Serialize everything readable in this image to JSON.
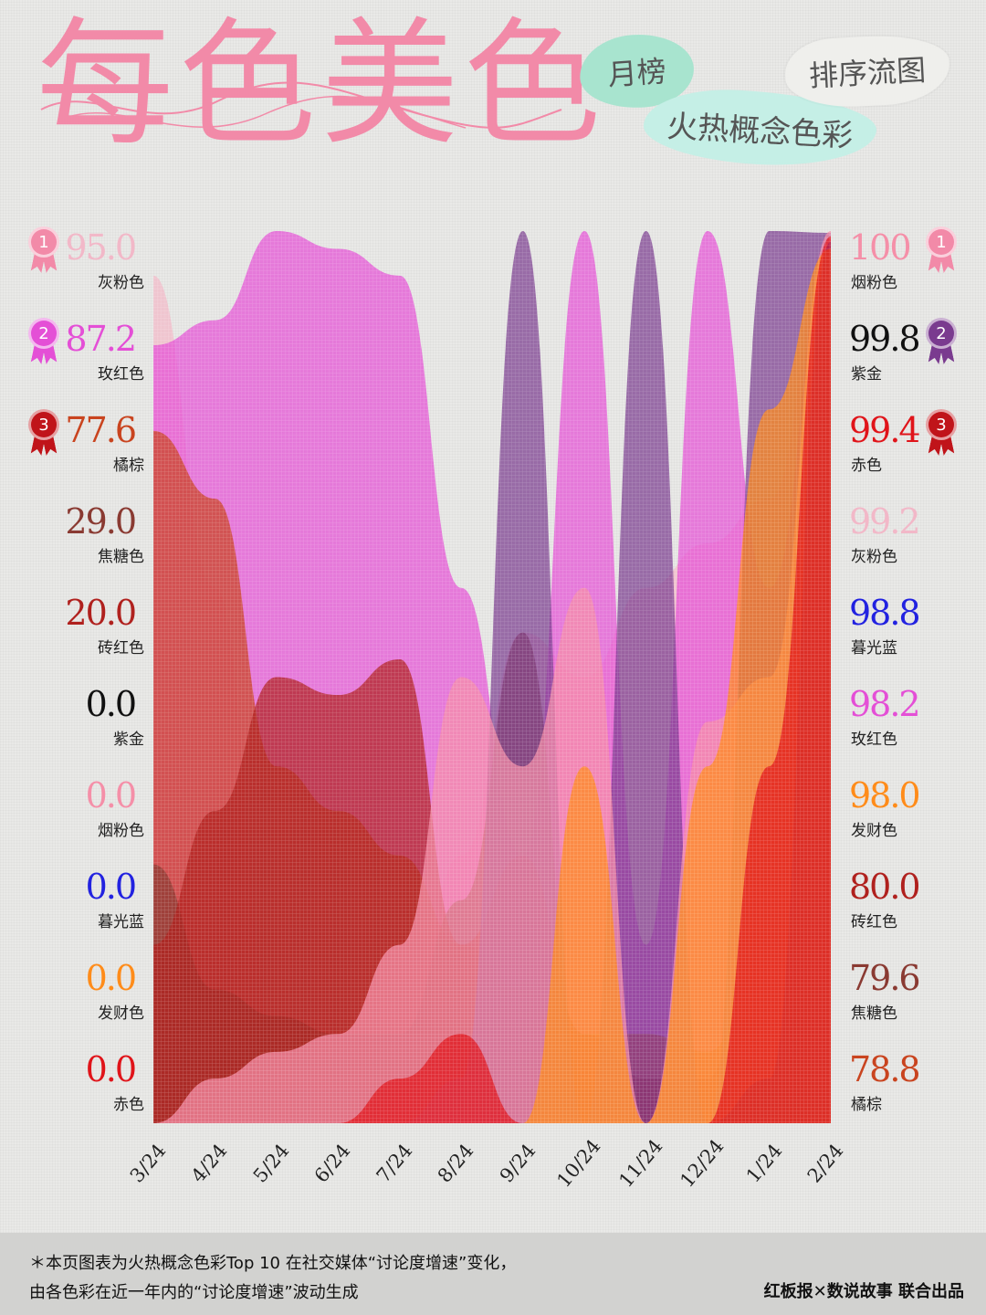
{
  "header": {
    "title": "每色美色",
    "month_tag": "月榜",
    "subtitle": "火热概念色彩",
    "chart_kind_tag": "排序流图"
  },
  "chart_data": {
    "type": "area",
    "x": [
      "3/24",
      "4/24",
      "5/24",
      "6/24",
      "7/24",
      "8/24",
      "9/24",
      "10/24",
      "11/24",
      "12/24",
      "1/24",
      "2/24"
    ],
    "series": [
      {
        "name": "灰粉色",
        "color": "#f2b8c8",
        "values": [
          95.0,
          60,
          10,
          5,
          8,
          30,
          55,
          50,
          60,
          65,
          70,
          99.2
        ]
      },
      {
        "name": "玫红色",
        "color": "#e44fd6",
        "values": [
          87.2,
          90,
          100,
          98,
          95,
          60,
          30,
          100,
          20,
          100,
          60,
          98.2
        ]
      },
      {
        "name": "橘棕",
        "color": "#c9441f",
        "values": [
          77.6,
          70,
          40,
          35,
          30,
          20,
          15,
          10,
          10,
          8,
          20,
          78.8
        ]
      },
      {
        "name": "焦糖色",
        "color": "#8a3a32",
        "values": [
          29.0,
          15,
          12,
          10,
          10,
          25,
          55,
          5,
          0,
          0,
          10,
          79.6
        ]
      },
      {
        "name": "砖红色",
        "color": "#b0211e",
        "values": [
          20.0,
          35,
          50,
          48,
          52,
          20,
          30,
          10,
          5,
          5,
          35,
          80.0
        ]
      },
      {
        "name": "紫金",
        "color": "#7a3b8f",
        "values": [
          0.0,
          0,
          0,
          0,
          0,
          5,
          100,
          0,
          100,
          0,
          100,
          99.8
        ]
      },
      {
        "name": "烟粉色",
        "color": "#f58fa8",
        "values": [
          0.0,
          5,
          8,
          10,
          20,
          50,
          40,
          60,
          0,
          45,
          50,
          100
        ]
      },
      {
        "name": "暮光蓝",
        "color": "#2233d8",
        "values": [
          0.0,
          0,
          0,
          0,
          0,
          0,
          0,
          0,
          0,
          0,
          5,
          98.8
        ]
      },
      {
        "name": "发财色",
        "color": "#ff8c1a",
        "values": [
          0.0,
          0,
          0,
          0,
          0,
          0,
          0,
          40,
          0,
          40,
          80,
          98.0
        ]
      },
      {
        "name": "赤色",
        "color": "#e0141a",
        "values": [
          0.0,
          0,
          0,
          0,
          5,
          10,
          0,
          0,
          0,
          0,
          40,
          99.4
        ]
      }
    ],
    "left_ranking": [
      {
        "value": "95.0",
        "name": "灰粉色",
        "color": "#f2b8c8",
        "medal": "1"
      },
      {
        "value": "87.2",
        "name": "玫红色",
        "color": "#e44fd6",
        "medal": "2"
      },
      {
        "value": "77.6",
        "name": "橘棕",
        "color": "#c9441f",
        "medal": "3"
      },
      {
        "value": "29.0",
        "name": "焦糖色",
        "color": "#8a3a32",
        "medal": ""
      },
      {
        "value": "20.0",
        "name": "砖红色",
        "color": "#b0211e",
        "medal": ""
      },
      {
        "value": "0.0",
        "name": "紫金",
        "color": "#111111",
        "medal": ""
      },
      {
        "value": "0.0",
        "name": "烟粉色",
        "color": "#f58fa8",
        "medal": ""
      },
      {
        "value": "0.0",
        "name": "暮光蓝",
        "color": "#2222e0",
        "medal": ""
      },
      {
        "value": "0.0",
        "name": "发财色",
        "color": "#ff8c1a",
        "medal": ""
      },
      {
        "value": "0.0",
        "name": "赤色",
        "color": "#e0141a",
        "medal": ""
      }
    ],
    "right_ranking": [
      {
        "value": "100",
        "name": "烟粉色",
        "color": "#f58fa8",
        "medal": "1"
      },
      {
        "value": "99.8",
        "name": "紫金",
        "color": "#111111",
        "medal": "2"
      },
      {
        "value": "99.4",
        "name": "赤色",
        "color": "#e0141a",
        "medal": "3"
      },
      {
        "value": "99.2",
        "name": "灰粉色",
        "color": "#f2b8c8",
        "medal": ""
      },
      {
        "value": "98.8",
        "name": "暮光蓝",
        "color": "#2222e0",
        "medal": ""
      },
      {
        "value": "98.2",
        "name": "玫红色",
        "color": "#e44fd6",
        "medal": ""
      },
      {
        "value": "98.0",
        "name": "发财色",
        "color": "#ff8c1a",
        "medal": ""
      },
      {
        "value": "80.0",
        "name": "砖红色",
        "color": "#b0211e",
        "medal": ""
      },
      {
        "value": "79.6",
        "name": "焦糖色",
        "color": "#8a3a32",
        "medal": ""
      },
      {
        "value": "78.8",
        "name": "橘棕",
        "color": "#c9441f",
        "medal": ""
      }
    ],
    "medal_colors": {
      "1": "#f28aa8",
      "2": "#e44fd6",
      "3": "#c0141a",
      "2r": "#7a3b8f"
    },
    "ylim": [
      0,
      100
    ]
  },
  "footer": {
    "note_line1": "＊本页图表为火热概念色彩Top 10 在社交媒体“讨论度增速”变化，",
    "note_line2": "由各色彩在近一年内的“讨论度增速”波动生成",
    "credit": "红板报✕数说故事 联合出品"
  }
}
